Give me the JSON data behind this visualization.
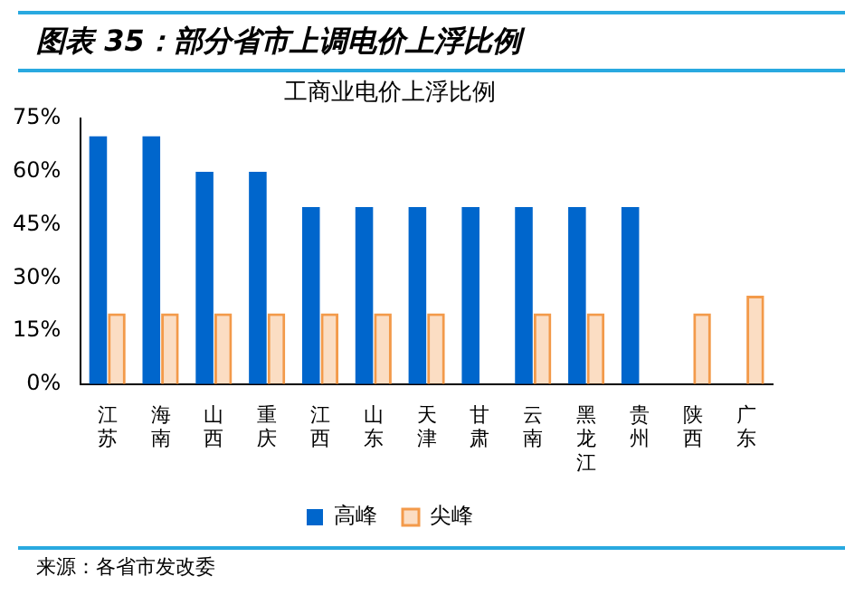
{
  "chart_data": {
    "type": "bar",
    "title": "图表 35：部分省市上调电价上浮比例",
    "subtitle": "工商业电价上浮比例",
    "categories": [
      "江苏",
      "海南",
      "山西",
      "重庆",
      "江西",
      "山东",
      "天津",
      "甘肃",
      "云南",
      "黑龙江",
      "贵州",
      "陕西",
      "广东"
    ],
    "series": [
      {
        "name": "高峰",
        "color": "#0066cc",
        "values": [
          70,
          70,
          60,
          60,
          50,
          50,
          50,
          50,
          50,
          50,
          50,
          null,
          null
        ]
      },
      {
        "name": "尖峰",
        "color": "#f39a4a",
        "values": [
          20,
          20,
          20,
          20,
          20,
          20,
          20,
          null,
          20,
          20,
          null,
          20,
          25
        ]
      }
    ],
    "ylim": [
      0,
      75
    ],
    "yticks": [
      {
        "value": 0,
        "label": "0%"
      },
      {
        "value": 15,
        "label": "15%"
      },
      {
        "value": 30,
        "label": "30%"
      },
      {
        "value": 45,
        "label": "45%"
      },
      {
        "value": 60,
        "label": "60%"
      },
      {
        "value": 75,
        "label": "75%"
      }
    ],
    "grid": false,
    "legend": "bottom",
    "annotations": [
      "来源：各省市发改委"
    ]
  }
}
